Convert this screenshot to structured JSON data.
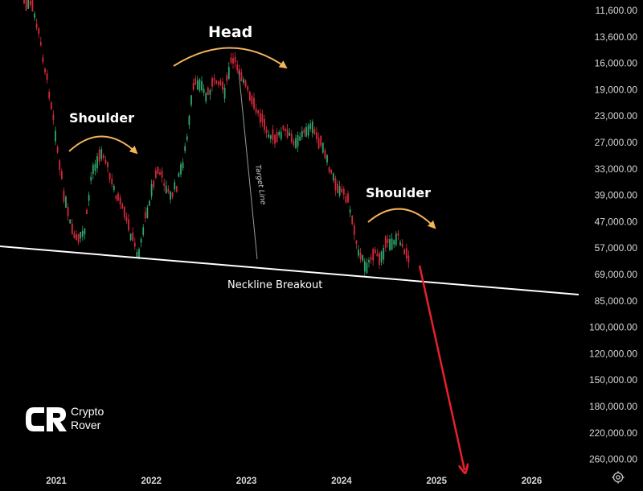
{
  "chart_data": {
    "type": "candlestick",
    "y_axis_inverted": true,
    "y_scale": "log",
    "y_ticks": [
      "11,600.00",
      "13,600.00",
      "16,000.00",
      "19,000.00",
      "23,000.00",
      "27,000.00",
      "33,000.00",
      "39,000.00",
      "47,000.00",
      "57,000.00",
      "69,000.00",
      "85,000.00",
      "100,000.00",
      "120,000.00",
      "150,000.00",
      "180,000.00",
      "220,000.00",
      "260,000.00"
    ],
    "x_ticks": [
      "2021",
      "2022",
      "2023",
      "2024",
      "2025",
      "2026"
    ],
    "annotations": {
      "left_shoulder": "Shoulder",
      "head": "Head",
      "right_shoulder": "Shoulder",
      "neckline": "Neckline Breakout",
      "target_line": "Target Line"
    },
    "colors": {
      "up": "#2fa66a",
      "down": "#d6283a",
      "arc": "#f3b45c",
      "arrow": "#e8202a",
      "neckline": "#ffffff"
    }
  },
  "brand": {
    "line1": "Crypto",
    "line2": "Rover"
  },
  "icons": {
    "settings": "gear-icon",
    "logo": "crypto-rover-logo"
  }
}
